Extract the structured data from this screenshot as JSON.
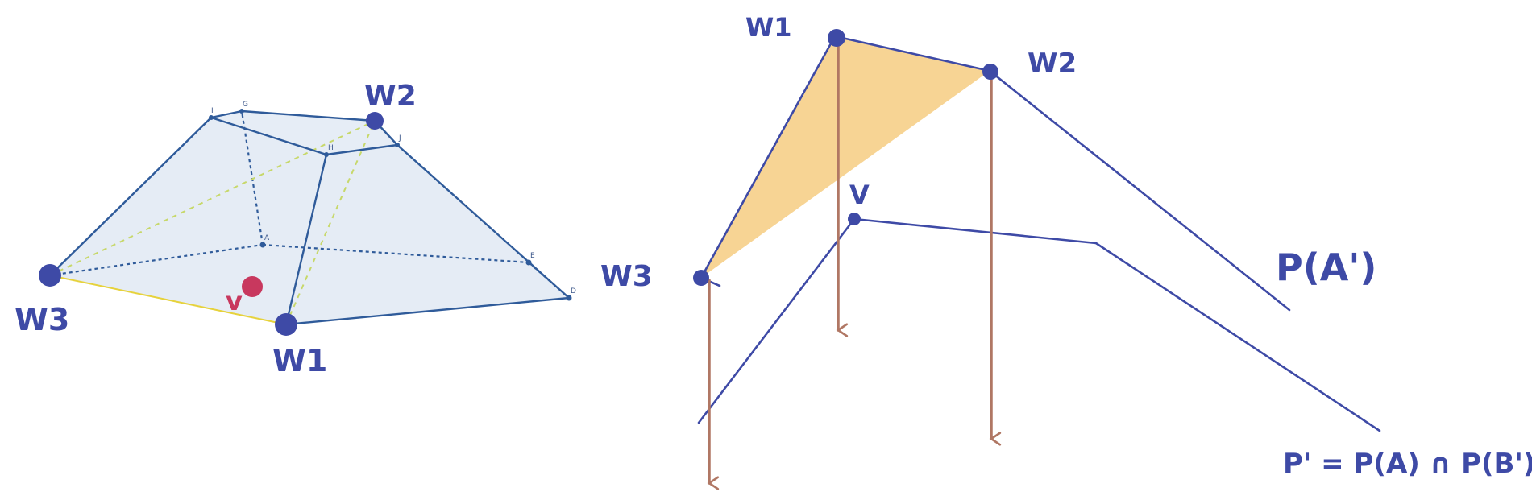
{
  "colors": {
    "ink": "#3e4aa6",
    "edge": "#2f5b9a",
    "face": "#dce6f1",
    "dashed_green": "#c7d86a",
    "yellow_edge": "#e6d23c",
    "highlight": "#f7d494",
    "arrow": "#b07764",
    "v_dot": "#c8385e"
  },
  "left_figure": {
    "labels": {
      "w1": "W1",
      "w2": "W2",
      "w3": "W3",
      "v": "v"
    },
    "vertex_letters": {
      "A": "A",
      "D": "D",
      "E": "E",
      "G": "G",
      "H": "H",
      "I": "I",
      "J": "J"
    }
  },
  "right_figure": {
    "labels": {
      "w1": "W1",
      "w2": "W2",
      "w3": "W3",
      "v": "V",
      "pa": "P(A')",
      "pp": "P' = P(A) ∩ P(B')"
    }
  }
}
